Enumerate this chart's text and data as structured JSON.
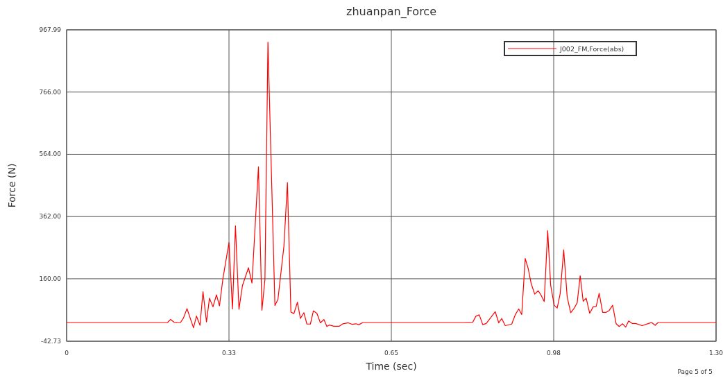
{
  "chart_data": {
    "type": "line",
    "title": "zhuanpan_Force",
    "xlabel": "Time (sec)",
    "ylabel": "Force (N)",
    "annotations": [
      "Page 5 of 5"
    ],
    "xlim": [
      0,
      1.3
    ],
    "xticks": [
      0,
      {
        "value": 0.325,
        "label": "0.33"
      },
      0.65,
      {
        "value": 0.975,
        "label": "0.98"
      },
      {
        "value": 1.3,
        "label": "1.30"
      }
    ],
    "ylim": [
      -42.73,
      967.99
    ],
    "yticks": [
      {
        "value": -42.73,
        "label": "-42.73"
      },
      {
        "value": 160,
        "label": "160.00"
      },
      {
        "value": 362,
        "label": "362.00"
      },
      {
        "value": 564,
        "label": "564.00"
      },
      {
        "value": 766,
        "label": "766.00"
      },
      {
        "value": 967.99,
        "label": "967.99"
      }
    ],
    "grid": true,
    "legend": "top right",
    "marker": "none",
    "line_style": "solid",
    "series": [
      {
        "name": "J002_FM,Force(abs)",
        "color": "#ff0000",
        "x": [
          0,
          0.202,
          0.208,
          0.215,
          0.228,
          0.234,
          0.241,
          0.254,
          0.26,
          0.267,
          0.273,
          0.28,
          0.286,
          0.293,
          0.3,
          0.306,
          0.313,
          0.325,
          0.332,
          0.338,
          0.345,
          0.352,
          0.364,
          0.371,
          0.384,
          0.391,
          0.397,
          0.403,
          0.417,
          0.423,
          0.435,
          0.442,
          0.449,
          0.455,
          0.462,
          0.468,
          0.475,
          0.481,
          0.488,
          0.494,
          0.501,
          0.508,
          0.515,
          0.521,
          0.526,
          0.535,
          0.546,
          0.553,
          0.564,
          0.572,
          0.579,
          0.585,
          0.593,
          0.795,
          0.813,
          0.819,
          0.826,
          0.833,
          0.84,
          0.858,
          0.865,
          0.871,
          0.878,
          0.891,
          0.898,
          0.905,
          0.911,
          0.918,
          0.924,
          0.93,
          0.937,
          0.944,
          0.95,
          0.956,
          0.963,
          0.969,
          0.976,
          0.982,
          0.988,
          0.995,
          1.002,
          1.009,
          1.015,
          1.022,
          1.028,
          1.034,
          1.04,
          1.047,
          1.054,
          1.06,
          1.066,
          1.073,
          1.08,
          1.086,
          1.093,
          1.1,
          1.106,
          1.113,
          1.119,
          1.125,
          1.132,
          1.139,
          1.152,
          1.165,
          1.171,
          1.178,
          1.184,
          1.3
        ],
        "values": [
          18,
          18,
          28,
          19,
          18,
          33,
          63,
          1,
          39,
          9,
          118,
          20,
          97,
          69,
          108,
          72,
          162,
          277,
          62,
          332,
          61,
          138,
          196,
          146,
          523,
          58,
          158,
          928,
          73,
          93,
          266,
          472,
          52,
          47,
          84,
          31,
          50,
          13,
          13,
          56,
          48,
          17,
          28,
          5,
          10,
          6,
          6,
          14,
          17,
          12,
          14,
          11,
          18,
          18,
          19,
          38,
          43,
          11,
          15,
          53,
          17,
          31,
          8,
          13,
          43,
          62,
          44,
          226,
          193,
          144,
          110,
          121,
          106,
          86,
          316,
          138,
          74,
          65,
          112,
          254,
          101,
          50,
          62,
          82,
          170,
          87,
          97,
          48,
          69,
          70,
          113,
          51,
          51,
          57,
          74,
          14,
          5,
          14,
          3,
          23,
          15,
          15,
          8,
          15,
          18,
          9,
          18,
          18
        ]
      }
    ]
  }
}
